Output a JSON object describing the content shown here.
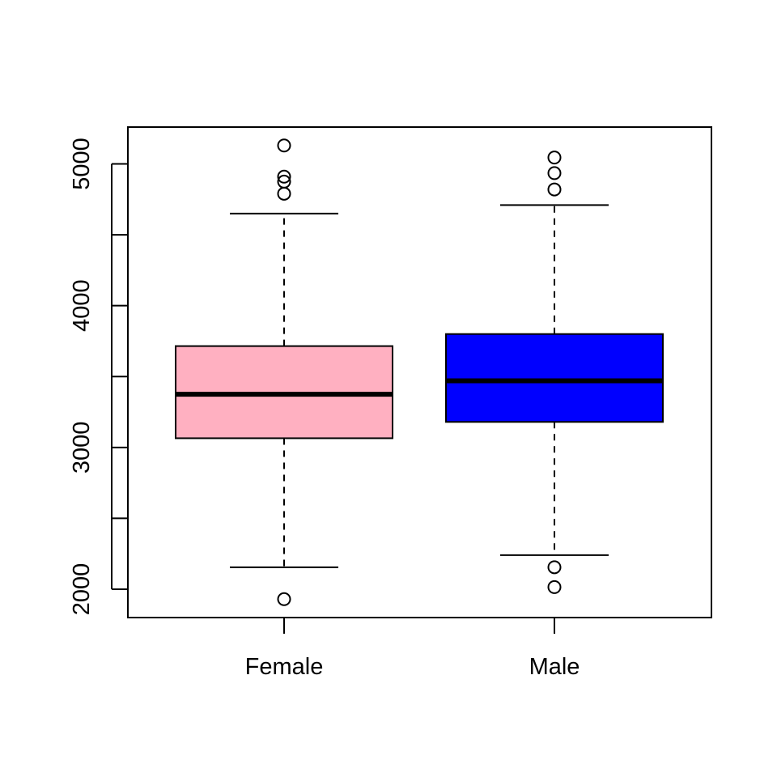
{
  "chart_data": {
    "type": "boxplot",
    "title": "",
    "xlabel": "",
    "ylabel": "",
    "ylim": [
      1800,
      5260
    ],
    "y_ticks": [
      2000,
      2500,
      3000,
      3500,
      4000,
      4500,
      5000
    ],
    "y_tick_labels": [
      "2000",
      "3000",
      "4000",
      "5000"
    ],
    "grid": false,
    "legend": "none",
    "categories": [
      "Female",
      "Male"
    ],
    "boxes": [
      {
        "label": "Female",
        "color": "#ffb0c1",
        "whisker_low": 2155,
        "q1": 3065,
        "median": 3375,
        "q3": 3715,
        "whisker_high": 4650,
        "outliers": [
          5130,
          4910,
          4875,
          4790,
          1930
        ]
      },
      {
        "label": "Male",
        "color": "#0000ff",
        "whisker_low": 2240,
        "q1": 3180,
        "median": 3470,
        "q3": 3800,
        "whisker_high": 4710,
        "outliers": [
          5045,
          4935,
          4820,
          2155,
          2015
        ]
      }
    ]
  }
}
